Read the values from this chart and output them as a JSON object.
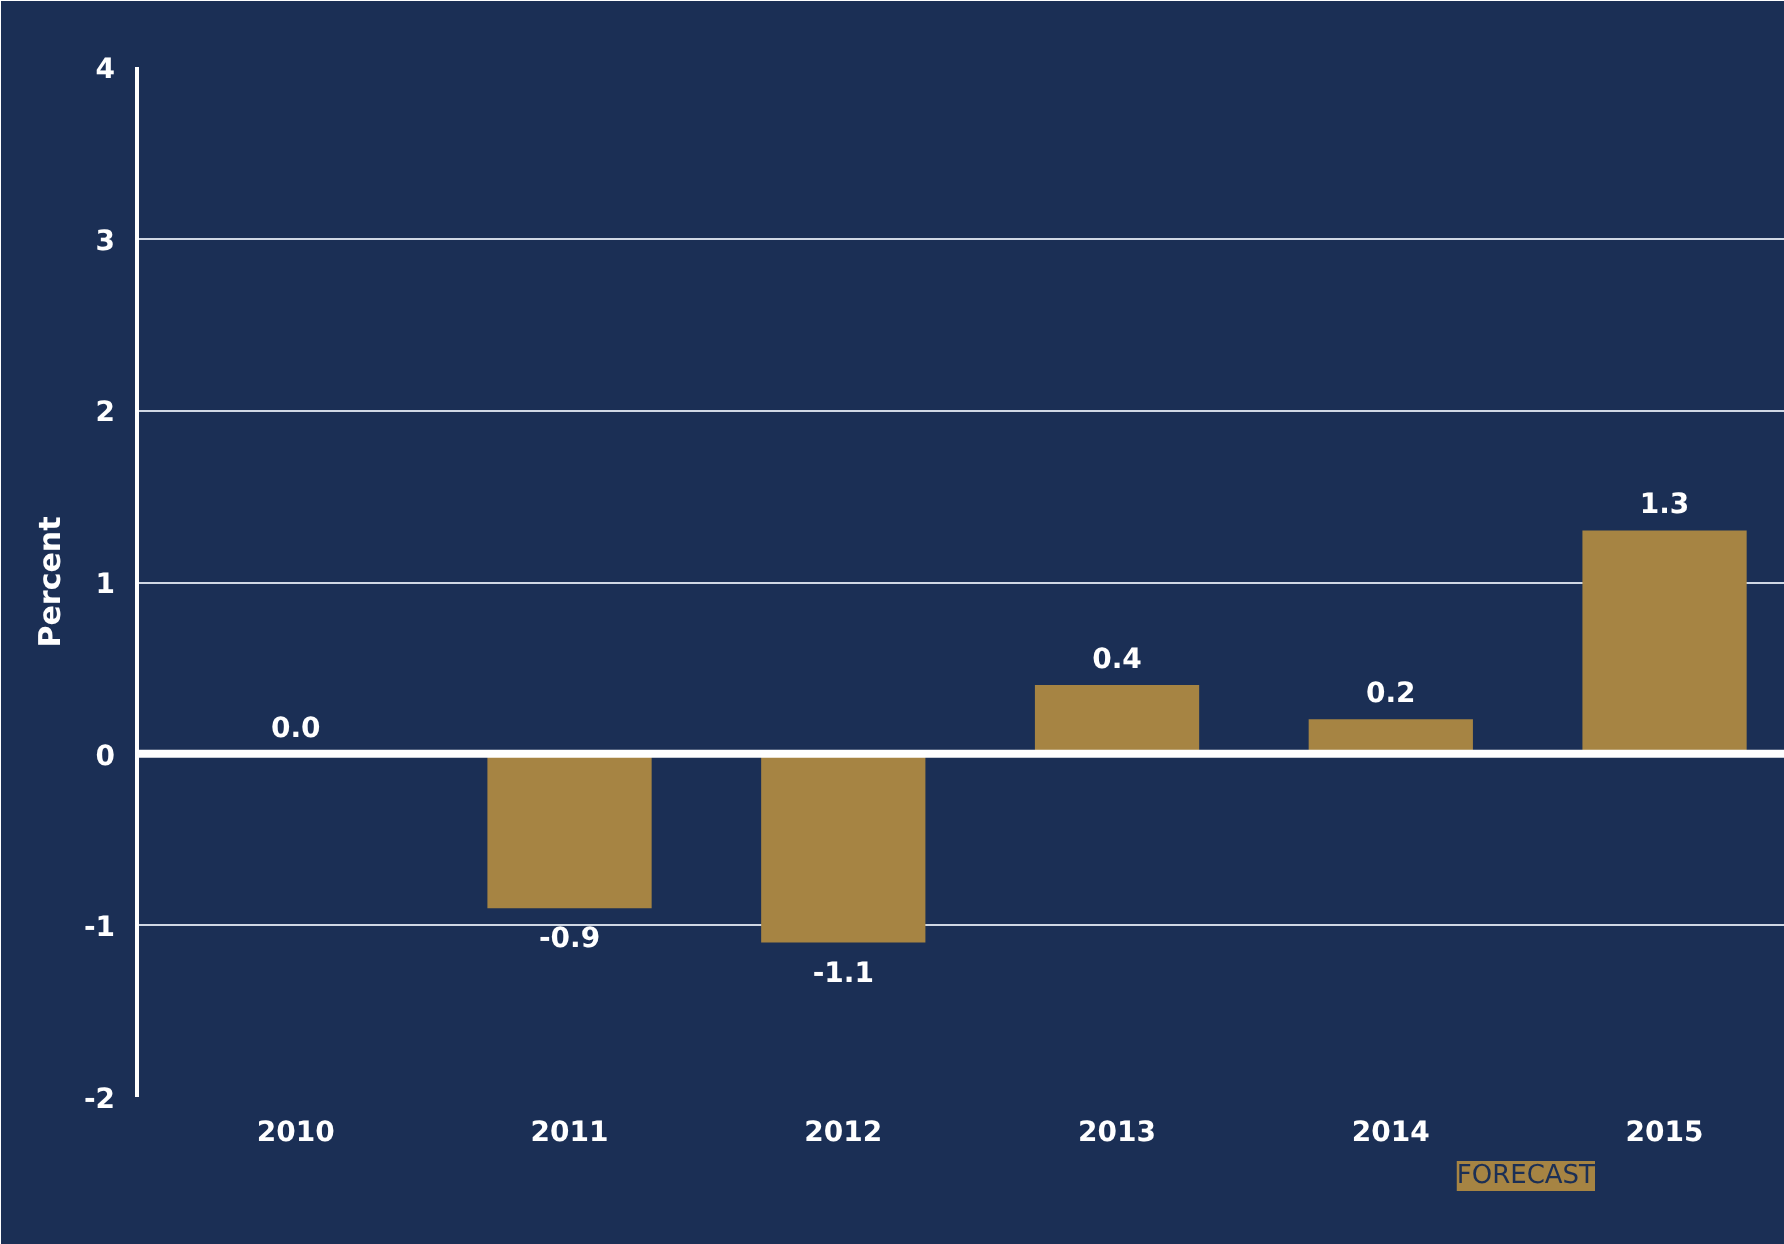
{
  "chart_data": {
    "type": "bar",
    "ylabel": "Percent",
    "categories": [
      "2010",
      "2011",
      "2012",
      "2013",
      "2014",
      "2015"
    ],
    "values": [
      0.0,
      -0.9,
      -1.1,
      0.4,
      0.2,
      1.3
    ],
    "color": "#a68443",
    "ylim": [
      -2,
      4
    ],
    "yticks": [
      -2,
      -1,
      0,
      1,
      2,
      3,
      4
    ],
    "grid": "y",
    "value_labels": [
      "0.0",
      "-0.9",
      "-1.1",
      "0.4",
      "0.2",
      "1.3"
    ],
    "ref_lines": [
      {
        "axis": "y",
        "value": 0,
        "color": "#ffffff"
      }
    ],
    "annotations": [
      "FORECAST"
    ]
  }
}
